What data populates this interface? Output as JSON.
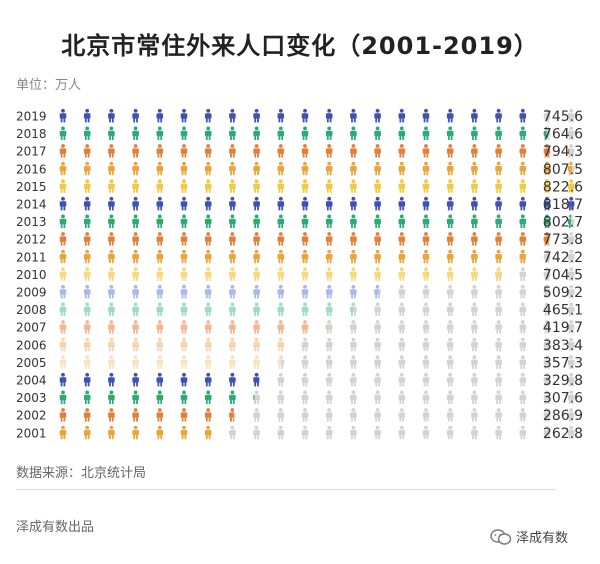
{
  "header": {
    "title": "北京市常住外来人口变化（2001-2019）",
    "unit": "单位：万人"
  },
  "footer": {
    "source": "数据来源：北京统计局",
    "credit": "泽成有数出品",
    "brand": "泽成有数"
  },
  "chart_data": {
    "type": "pictograph",
    "title": "北京市常住外来人口变化（2001-2019）",
    "unit": "万人",
    "icons_per_row": 22,
    "inactive_color": "#d3d3d3",
    "max_value": 822.6,
    "rows": [
      {
        "year": "2019",
        "value": 745.6,
        "color": "#3f51b5"
      },
      {
        "year": "2018",
        "value": 764.6,
        "color": "#2eaa76"
      },
      {
        "year": "2017",
        "value": 794.3,
        "color": "#e0803a"
      },
      {
        "year": "2016",
        "value": 807.5,
        "color": "#eaa63a"
      },
      {
        "year": "2015",
        "value": 822.6,
        "color": "#f3c942"
      },
      {
        "year": "2014",
        "value": 818.7,
        "color": "#3f51b5"
      },
      {
        "year": "2013",
        "value": 802.7,
        "color": "#2eaa76"
      },
      {
        "year": "2012",
        "value": 773.8,
        "color": "#e0803a"
      },
      {
        "year": "2011",
        "value": 742.2,
        "color": "#eaa63a"
      },
      {
        "year": "2010",
        "value": 704.5,
        "color": "#f5d97a"
      },
      {
        "year": "2009",
        "value": 509.2,
        "color": "#a9b8f0"
      },
      {
        "year": "2008",
        "value": 465.1,
        "color": "#9fdcbf"
      },
      {
        "year": "2007",
        "value": 419.7,
        "color": "#f3b693"
      },
      {
        "year": "2006",
        "value": 383.4,
        "color": "#f7d3b1"
      },
      {
        "year": "2005",
        "value": 357.3,
        "color": "#f9e3c0"
      },
      {
        "year": "2004",
        "value": 329.8,
        "color": "#3f51b5"
      },
      {
        "year": "2003",
        "value": 307.6,
        "color": "#2eaa76"
      },
      {
        "year": "2002",
        "value": 286.9,
        "color": "#e0803a"
      },
      {
        "year": "2001",
        "value": 262.8,
        "color": "#eaa63a"
      }
    ]
  }
}
